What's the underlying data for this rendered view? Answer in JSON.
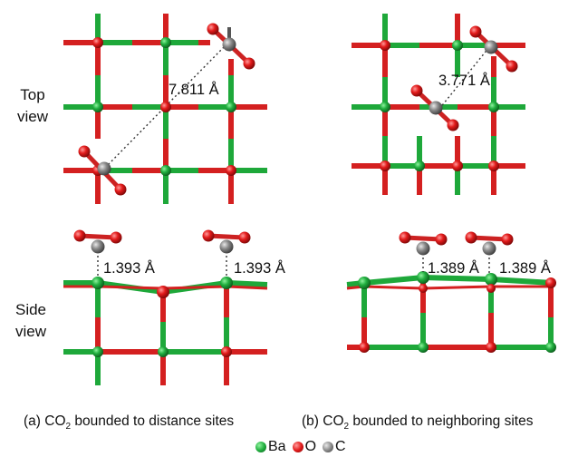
{
  "labels": {
    "top_view_line1": "Top",
    "top_view_line2": "view",
    "side_view_line1": "Side",
    "side_view_line2": "view"
  },
  "distances": {
    "a_top": "7.811 Å",
    "b_top": "3.771 Å",
    "a_side_left": "1.393 Å",
    "a_side_right": "1.393 Å",
    "b_side_left": "1.389 Å",
    "b_side_right": "1.389 Å"
  },
  "captions": {
    "a_prefix": "(a) CO",
    "a_sub": "2",
    "a_suffix": " bounded to distance sites",
    "b_prefix": "(b) CO",
    "b_sub": "2",
    "b_suffix": " bounded to neighboring sites"
  },
  "legend": [
    {
      "label": "Ba",
      "color": "#1ea83a"
    },
    {
      "label": "O",
      "color": "#e21c1c"
    },
    {
      "label": "C",
      "color": "#8a8a8a"
    }
  ],
  "colors": {
    "ba": "#1ea83a",
    "o": "#e21c1c",
    "c": "#8a8a8a"
  }
}
